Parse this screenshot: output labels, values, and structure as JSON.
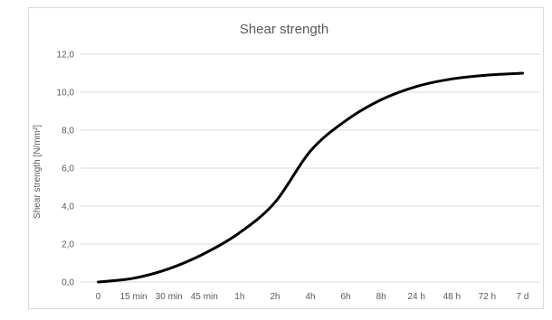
{
  "chart_data": {
    "type": "line",
    "title": "Shear strength",
    "xlabel": "",
    "ylabel": "Shear strength [N/mm²]",
    "categories": [
      "0",
      "15 min",
      "30 min",
      "45 min",
      "1h",
      "2h",
      "4h",
      "6h",
      "8h",
      "24 h",
      "48 h",
      "72 h",
      "7 d"
    ],
    "series": [
      {
        "values": [
          0.0,
          0.2,
          0.7,
          1.5,
          2.6,
          4.2,
          6.9,
          8.5,
          9.6,
          10.3,
          10.7,
          10.9,
          11.0
        ]
      }
    ],
    "ylim": [
      0,
      12
    ],
    "yticks": [
      "0,0",
      "2,0",
      "4,0",
      "6,0",
      "8,0",
      "10,0",
      "12,0"
    ],
    "ytick_values": [
      0,
      2,
      4,
      6,
      8,
      10,
      12
    ],
    "grid": true,
    "legend": "none",
    "smooth": true,
    "colors": {
      "line": "#000000",
      "grid": "#d9d9d9",
      "text": "#595959"
    }
  }
}
